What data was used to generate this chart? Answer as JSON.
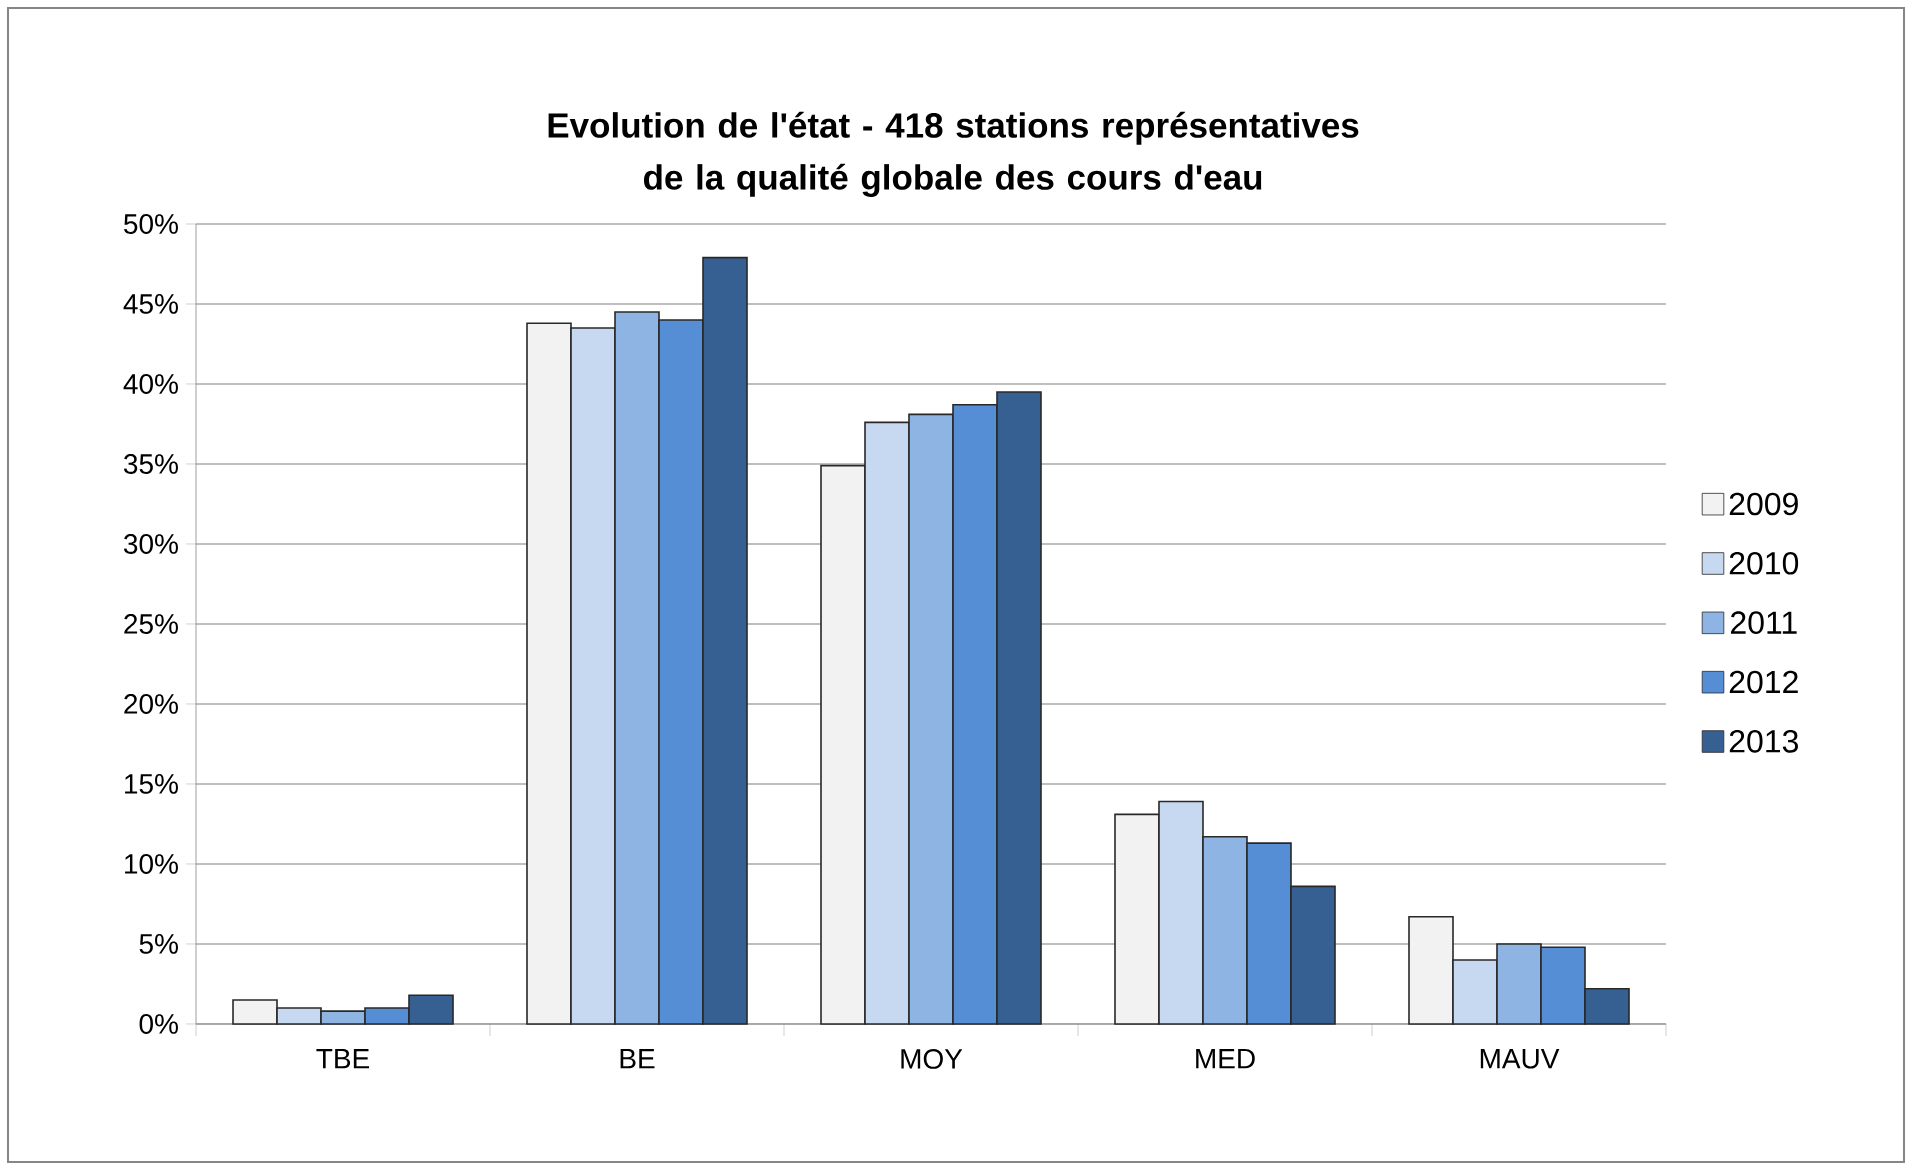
{
  "chart_data": {
    "type": "bar",
    "title": "Evolution de l'état - 418 stations représentatives de la qualité globale des cours d'eau",
    "categories": [
      "TBE",
      "BE",
      "MOY",
      "MED",
      "MAUV"
    ],
    "series": [
      {
        "name": "2009",
        "color": "#f2f2f2",
        "values": [
          1.5,
          43.8,
          34.9,
          13.1,
          6.7
        ]
      },
      {
        "name": "2010",
        "color": "#c6d9f1",
        "values": [
          1.0,
          43.5,
          37.6,
          13.9,
          4.0
        ]
      },
      {
        "name": "2011",
        "color": "#8eb4e3",
        "values": [
          0.8,
          44.5,
          38.1,
          11.7,
          5.0
        ]
      },
      {
        "name": "2012",
        "color": "#558ed5",
        "values": [
          1.0,
          44.0,
          38.7,
          11.3,
          4.8
        ]
      },
      {
        "name": "2013",
        "color": "#376092",
        "values": [
          1.8,
          47.9,
          39.5,
          8.6,
          2.2
        ]
      }
    ],
    "ylim": [
      0,
      50
    ],
    "yticks": [
      {
        "value": 0,
        "label": "0%"
      },
      {
        "value": 5,
        "label": "5%"
      },
      {
        "value": 10,
        "label": "10%"
      },
      {
        "value": 15,
        "label": "15%"
      },
      {
        "value": 20,
        "label": "20%"
      },
      {
        "value": 25,
        "label": "25%"
      },
      {
        "value": 30,
        "label": "30%"
      },
      {
        "value": 35,
        "label": "35%"
      },
      {
        "value": 40,
        "label": "40%"
      },
      {
        "value": 45,
        "label": "45%"
      },
      {
        "value": 50,
        "label": "50%"
      }
    ],
    "grid": "y",
    "legend": "right"
  }
}
